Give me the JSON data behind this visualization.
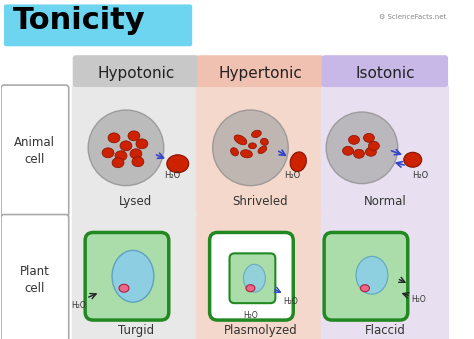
{
  "title": "Tonicity",
  "title_bg_color": "#6dd5f0",
  "title_font_color": "#000000",
  "bg_color": "#ffffff",
  "col_headers": [
    "Hypotonic",
    "Hypertonic",
    "Isotonic"
  ],
  "col_header_colors": [
    "#c8c8c8",
    "#f0c0b0",
    "#c8b8e8"
  ],
  "row_labels": [
    "Animal\ncell",
    "Plant\ncell"
  ],
  "cell_bg_colors": [
    "#e8e8e8",
    "#f5d8cc",
    "#e8e0f0"
  ],
  "plant_bg_colors": [
    "#e8e8e8",
    "#f5d8cc",
    "#e8e0f0"
  ],
  "animal_labels": [
    "Lysed",
    "Shriveled",
    "Normal"
  ],
  "plant_labels": [
    "Turgid",
    "Plasmolyzed",
    "Flaccid"
  ],
  "gray_circle_color": "#a8a8a8",
  "red_cell_color": "#cc2200",
  "red_cell_light": "#ee4422",
  "plant_outer_color": "#228822",
  "plant_inner_light": "#aaddaa",
  "plant_vacuole_color": "#88ccee",
  "plant_nucleus_color": "#ee6688",
  "arrow_color": "#3344cc",
  "water_label": "H₂O"
}
